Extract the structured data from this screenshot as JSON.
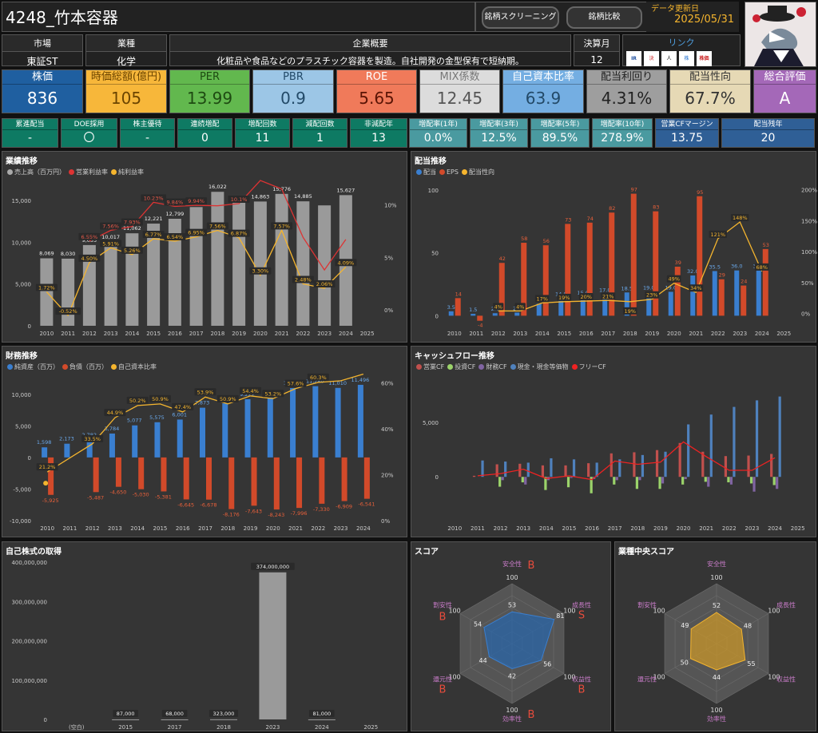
{
  "header": {
    "title": "4248_竹本容器",
    "btn_screening": "銘柄スクリーニング",
    "btn_compare": "銘柄比較",
    "update_label": "データ更新日",
    "update_date": "2025/05/31"
  },
  "info": {
    "market_label": "市場",
    "market": "東証ST",
    "industry_label": "業種",
    "industry": "化学",
    "overview_label": "企業概要",
    "overview": "化粧品や食品などのプラスチック容器を製造。自社開発の金型保有で短納期。",
    "fiscal_label": "決算月",
    "fiscal": "12",
    "link_label": "リンク",
    "links": [
      "IR",
      "決",
      "人",
      "株",
      "株価"
    ]
  },
  "kpis": [
    {
      "label": "株価",
      "value": "836",
      "bg": "#1f5fa0",
      "kc": "#fff",
      "vc": "#fff"
    },
    {
      "label": "時価総額(億円)",
      "value": "105",
      "bg": "#f7b73a",
      "kc": "#6b4400",
      "vc": "#6b4400"
    },
    {
      "label": "PER",
      "value": "13.99",
      "bg": "#62b84e",
      "kc": "#1e4a12",
      "vc": "#1e4a12"
    },
    {
      "label": "PBR",
      "value": "0.9",
      "bg": "#9cc6e6",
      "kc": "#234a68",
      "vc": "#234a68"
    },
    {
      "label": "ROE",
      "value": "5.65",
      "bg": "#f07a5a",
      "kc": "#fff",
      "vc": "#5a1405"
    },
    {
      "label": "MIX係数",
      "value": "12.45",
      "bg": "#dcdcdc",
      "kc": "#777",
      "vc": "#555"
    },
    {
      "label": "自己資本比率",
      "value": "63.9",
      "bg": "#74aee2",
      "kc": "#fff",
      "vc": "#234a68"
    },
    {
      "label": "配当利回り",
      "value": "4.31%",
      "bg": "#9e9e9e",
      "kc": "#222",
      "vc": "#222"
    },
    {
      "label": "配当性向",
      "value": "67.7%",
      "bg": "#e6d9b5",
      "kc": "#333",
      "vc": "#333"
    },
    {
      "label": "総合評価",
      "value": "A",
      "bg": "#a468b8",
      "kc": "#fff",
      "vc": "#fff"
    }
  ],
  "stats": [
    {
      "label": "累進配当",
      "value": "-",
      "bg": "#0e7a63"
    },
    {
      "label": "DOE採用",
      "value": "〇",
      "bg": "#0e7a63"
    },
    {
      "label": "株主優待",
      "value": "-",
      "bg": "#0e7a63"
    },
    {
      "label": "連続増配",
      "value": "0",
      "bg": "#0e7a63"
    },
    {
      "label": "増配回数",
      "value": "11",
      "bg": "#0e7a63"
    },
    {
      "label": "減配回数",
      "value": "1",
      "bg": "#0e7a63"
    },
    {
      "label": "非減配年",
      "value": "13",
      "bg": "#0e7a63"
    },
    {
      "label": "増配率(1年)",
      "value": "0.0%",
      "bg": "#4a9aa0"
    },
    {
      "label": "増配率(3年)",
      "value": "12.5%",
      "bg": "#4a9aa0"
    },
    {
      "label": "増配率(5年)",
      "value": "89.5%",
      "bg": "#4a9aa0"
    },
    {
      "label": "増配率(10年)",
      "value": "278.9%",
      "bg": "#4a9aa0"
    },
    {
      "label": "営業CFマージン",
      "value": "13.75",
      "bg": "#2f5f96"
    },
    {
      "label": "配当残年",
      "value": "20",
      "bg": "#2f5f96"
    }
  ],
  "panels": {
    "gyoseki": "業績推移",
    "haito": "配当推移",
    "zaimu": "財務推移",
    "cf": "キャッシュフロー推移",
    "jisha": "自己株式の取得",
    "score": "スコア",
    "gyoshu_score": "業種中央スコア"
  },
  "legends": {
    "gyoseki": [
      {
        "name": "売上高（百万円）",
        "color": "#aaa"
      },
      {
        "name": "営業利益率",
        "color": "#d33"
      },
      {
        "name": "純利益率",
        "color": "#f5b52e"
      }
    ],
    "haito": [
      {
        "name": "配当",
        "color": "#3a7fd0"
      },
      {
        "name": "EPS",
        "color": "#d24a2a"
      },
      {
        "name": "配当性向",
        "color": "#f5b52e"
      }
    ],
    "zaimu": [
      {
        "name": "純資産（百万）",
        "color": "#3a7fd0"
      },
      {
        "name": "負債（百万）",
        "color": "#d24a2a"
      },
      {
        "name": "自己資本比率",
        "color": "#f5b52e"
      }
    ],
    "cf": [
      {
        "name": "営業CF",
        "color": "#c0504d"
      },
      {
        "name": "投資CF",
        "color": "#9bd36a"
      },
      {
        "name": "財務CF",
        "color": "#8064a2"
      },
      {
        "name": "現金・現金等価物",
        "color": "#4f81bd"
      },
      {
        "name": "フリーCF",
        "color": "#e22"
      }
    ]
  },
  "chart_data": [
    {
      "type": "bar",
      "title": "業績推移",
      "categories": [
        "2010",
        "2011",
        "2012",
        "2013",
        "2014",
        "2015",
        "2016",
        "2017",
        "2018",
        "2019",
        "2020",
        "2021",
        "2022",
        "2023",
        "2024",
        "2025"
      ],
      "series": [
        {
          "name": "売上高（百万円）",
          "values": [
            8069,
            8030,
            9655,
            10017,
            11062,
            12221,
            12799,
            14201,
            16022,
            14884,
            14863,
            15776,
            14885,
            14400,
            15627,
            null
          ],
          "labels": [
            "8,069",
            "8,030",
            "9,655",
            "10,017",
            "11,062",
            "12,221",
            "12,799",
            "14,201",
            "16,022",
            "",
            "14,863",
            "15,776",
            "14,885",
            "",
            "15,627",
            ""
          ]
        },
        {
          "name": "営業利益率",
          "values": [
            null,
            null,
            6.55,
            7.56,
            7.93,
            10.23,
            9.84,
            9.94,
            9.9,
            10.1,
            12.3,
            11.5,
            6.9,
            3.8,
            6.7,
            null
          ],
          "labels": [
            "",
            "",
            "6.55%",
            "7.56%",
            "7.93%",
            "10.23%",
            "9.84%",
            "9.94%",
            "",
            "10.1%",
            "",
            "",
            "",
            "",
            "",
            ""
          ]
        },
        {
          "name": "純利益率",
          "values": [
            1.72,
            -0.52,
            4.5,
            5.91,
            5.26,
            6.77,
            6.54,
            6.95,
            7.56,
            6.87,
            3.3,
            7.57,
            2.48,
            2.06,
            4.09,
            null
          ],
          "labels": [
            "1.72%",
            "-0.52%",
            "4.50%",
            "5.91%",
            "5.26%",
            "6.77%",
            "6.54%",
            "6.95%",
            "7.56%",
            "6.87%",
            "3.30%",
            "7.57%",
            "2.48%",
            "2.06%",
            "4.09%",
            ""
          ]
        }
      ],
      "y_ticks": [
        "0",
        "5,000",
        "10,000",
        "15,000"
      ],
      "y2_ticks": [
        "0%",
        "5%",
        "10%"
      ],
      "ylim": [
        0,
        17000
      ],
      "y2lim": [
        -1.5,
        12
      ]
    },
    {
      "type": "bar",
      "title": "配当推移",
      "categories": [
        "2010",
        "2011",
        "2012",
        "2013",
        "2014",
        "2015",
        "2016",
        "2017",
        "2018",
        "2019",
        "2020",
        "2021",
        "2022",
        "2023",
        "2024",
        "2025"
      ],
      "series": [
        {
          "name": "配当",
          "values": [
            3.5,
            1.5,
            2.0,
            2.5,
            9.5,
            14.0,
            15.0,
            17.0,
            18.5,
            19.0,
            19.0,
            32.0,
            35.5,
            36.0,
            36.0,
            null
          ],
          "labels": [
            "3.5",
            "1.5",
            "2.0",
            "2.5",
            "9.5",
            "14.0",
            "15.0",
            "17.0",
            "18.5",
            "19.0",
            "19.0",
            "32.0",
            "35.5",
            "36.0",
            "36.0",
            ""
          ]
        },
        {
          "name": "EPS",
          "values": [
            14,
            -4,
            42,
            58,
            56,
            73,
            74,
            82,
            97,
            83,
            39,
            95,
            29,
            24,
            53,
            null
          ],
          "labels": [
            "14",
            "-4",
            "42",
            "58",
            "56",
            "73",
            "74",
            "82",
            "97",
            "83",
            "39",
            "95",
            "29",
            "24",
            "53",
            ""
          ]
        },
        {
          "name": "配当性向",
          "values": [
            null,
            null,
            4,
            4,
            17,
            19,
            20,
            21,
            19,
            23,
            49,
            34,
            121,
            148,
            68,
            null
          ],
          "labels": [
            "",
            "",
            "4%",
            "4%",
            "17%",
            "19%",
            "20%",
            "21%",
            "19%",
            "23%",
            "49%",
            "34%",
            "121%",
            "148%",
            "68%",
            ""
          ]
        }
      ],
      "y_ticks": [
        "0",
        "50",
        "100"
      ],
      "y2_ticks": [
        "0%",
        "50%",
        "100%",
        "150%",
        "200%"
      ],
      "ylim": [
        -8,
        105
      ],
      "y2lim": [
        -20,
        210
      ]
    },
    {
      "type": "bar",
      "title": "財務推移",
      "categories": [
        "2010",
        "2011",
        "2012",
        "2013",
        "2014",
        "2015",
        "2016",
        "2017",
        "2018",
        "2019",
        "2020",
        "2021",
        "2022",
        "2023",
        "2024"
      ],
      "series": [
        {
          "name": "純資産（百万）",
          "values": [
            1598,
            2173,
            2782,
            3784,
            5077,
            5575,
            6001,
            7873,
            8555,
            9222,
            9469,
            10981,
            11280,
            11010,
            11496
          ],
          "labels": [
            "1,598",
            "2,173",
            "2,782",
            "3,784",
            "5,077",
            "5,575",
            "6,001",
            "7,873",
            "8,555",
            "9,222",
            "9,469",
            "10,981",
            "11,280",
            "11,010",
            "11,496"
          ]
        },
        {
          "name": "負債（百万）",
          "values": [
            -5925,
            null,
            -5487,
            -4650,
            -5030,
            -5381,
            -6645,
            -6678,
            -8176,
            -7643,
            -8243,
            -7996,
            -7330,
            -6909,
            -6541
          ],
          "labels": [
            "-5,925",
            "",
            "-5,487",
            "-4,650",
            "-5,030",
            "-5,381",
            "-6,645",
            "-6,678",
            "-8,176",
            "-7,643",
            "-8,243",
            "-7,996",
            "-7,330",
            "-6,909",
            "-6,541"
          ]
        },
        {
          "name": "自己資本比率",
          "values": [
            21.2,
            null,
            33.5,
            44.9,
            50.2,
            50.9,
            47.4,
            53.9,
            50.9,
            54.4,
            53.2,
            57.6,
            60.3,
            61,
            63.9
          ],
          "labels": [
            "21.2%",
            "",
            "33.5%",
            "44.9%",
            "50.2%",
            "50.9%",
            "47.4%",
            "53.9%",
            "50.9%",
            "54.4%",
            "53.2%",
            "57.6%",
            "60.3%",
            "",
            ""
          ]
        }
      ],
      "y_ticks": [
        "-10,000",
        "-5,000",
        "0",
        "5,000",
        "10,000"
      ],
      "y2_ticks": [
        "0%",
        "20%",
        "40%",
        "60%"
      ],
      "ylim": [
        -10000,
        12500
      ],
      "y2lim": [
        0,
        62
      ]
    },
    {
      "type": "bar",
      "title": "キャッシュフロー推移",
      "categories": [
        "2010",
        "2011",
        "2012",
        "2013",
        "2014",
        "2015",
        "2016",
        "2017",
        "2018",
        "2019",
        "2020",
        "2021",
        "2022",
        "2023",
        "2024",
        "2025"
      ],
      "series": [
        {
          "name": "営業CF",
          "values": [
            null,
            100,
            1150,
            1200,
            1050,
            1050,
            1250,
            2150,
            2250,
            2450,
            3100,
            2300,
            1900,
            1950,
            2100,
            null
          ]
        },
        {
          "name": "投資CF",
          "values": [
            null,
            null,
            -900,
            -500,
            -1200,
            -950,
            -1500,
            -700,
            -1100,
            -1100,
            -700,
            -450,
            -500,
            -600,
            -750,
            null
          ]
        },
        {
          "name": "財務CF",
          "values": [
            null,
            null,
            -300,
            -700,
            -300,
            -100,
            -200,
            -300,
            -300,
            -600,
            -200,
            -900,
            -700,
            -1350,
            -1100,
            null
          ]
        },
        {
          "name": "現金・現金等価物",
          "values": [
            null,
            1500,
            1400,
            1300,
            1700,
            1600,
            1300,
            1600,
            2000,
            2300,
            4800,
            5700,
            6400,
            7000,
            7350,
            null
          ]
        },
        {
          "name": "フリーCF",
          "values": [
            null,
            100,
            300,
            700,
            -150,
            100,
            -250,
            1450,
            1150,
            1350,
            3200,
            1850,
            600,
            600,
            1750,
            null
          ]
        }
      ],
      "y_ticks": [
        "0",
        "5,000"
      ],
      "ylim": [
        -4000,
        9000
      ]
    },
    {
      "type": "bar",
      "title": "自己株式の取得",
      "categories": [
        "(空白)",
        "2015",
        "2017",
        "2018",
        "2023",
        "2024",
        "2025"
      ],
      "series": [
        {
          "name": "自己株式の取得",
          "values": [
            null,
            87000,
            68000,
            323000,
            374000000,
            81000,
            null
          ],
          "labels": [
            "",
            "87,000",
            "68,000",
            "323,000",
            "374,000,000",
            "81,000",
            ""
          ]
        }
      ],
      "y_ticks": [
        "0",
        "100,000,000",
        "200,000,000",
        "300,000,000",
        "400,000,000"
      ],
      "ylim": [
        0,
        400000000
      ]
    }
  ],
  "radar": {
    "axes": [
      "安全性",
      "成長性",
      "収益性",
      "効率性",
      "還元性",
      "割安性"
    ],
    "max_label": "100",
    "score": {
      "values": [
        53,
        81,
        56,
        42,
        44,
        54
      ],
      "grades": [
        "B",
        "S",
        "B",
        "B",
        "B",
        "B"
      ]
    },
    "industry": {
      "values": [
        52,
        48,
        55,
        44,
        50,
        49
      ]
    }
  }
}
